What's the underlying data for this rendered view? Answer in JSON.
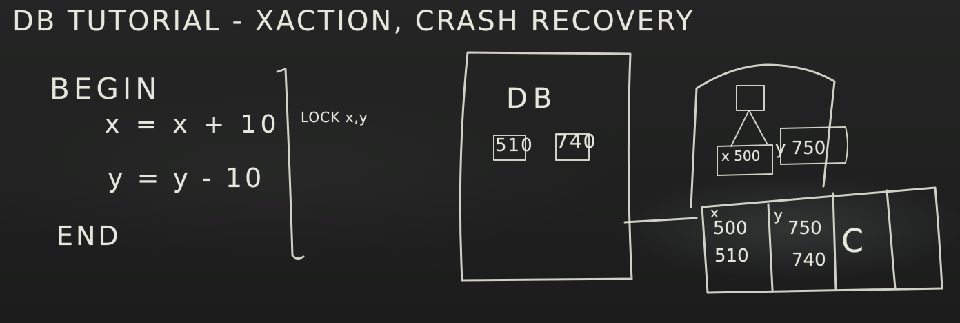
{
  "blackboard": {
    "title": "DB TUTORIAL - XACTION, CRASH RECOVERY",
    "transaction": {
      "begin": "BEGIN",
      "statement_1": "x = x + 10",
      "statement_2": "y = y - 10",
      "end": "END",
      "lock_note": "LOCK x,y"
    },
    "database": {
      "label": "DB",
      "x_value": "510",
      "y_value": "740"
    },
    "buffer_page": {
      "x_cell": "x 500",
      "y_cell": "y 750"
    },
    "log_table": {
      "x_label": "x",
      "x_old": "500",
      "x_new": "510",
      "y_label": "y",
      "y_old": "750",
      "y_new": "740",
      "commit": "C"
    }
  },
  "colors": {
    "board": "#1e1f1e",
    "chalk": "#e6e6dc"
  }
}
